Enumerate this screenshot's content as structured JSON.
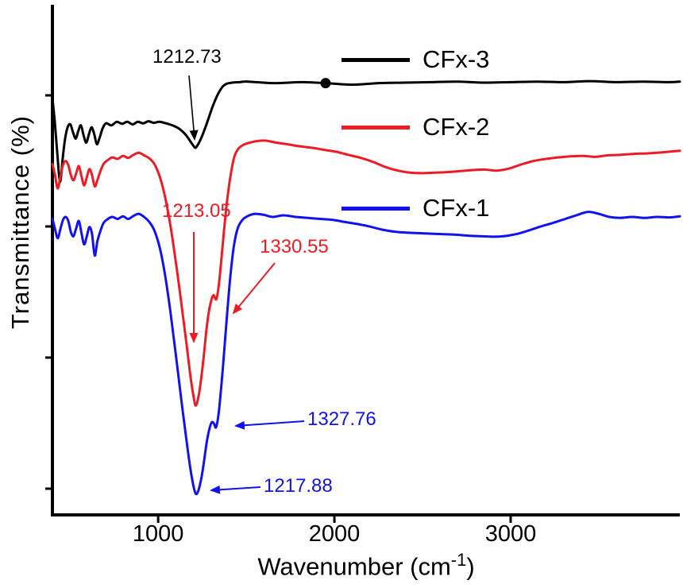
{
  "figure": {
    "background": "#ffffff",
    "ylabel": "Transmittance (%)",
    "xlabel_main": "Wavenumber (cm",
    "xlabel_sup": "-1",
    "xlabel_close": ")",
    "x_ticks": [
      "1000",
      "2000",
      "3000"
    ]
  },
  "legend": [
    {
      "label": "CFx-3",
      "color": "#000000"
    },
    {
      "label": "CFx-2",
      "color": "#ed1c24"
    },
    {
      "label": "CFx-1",
      "color": "#1212ef"
    }
  ],
  "annotations": [
    {
      "text": "1212.73",
      "color": "#000000"
    },
    {
      "text": "1213.05",
      "color": "#ed1c24"
    },
    {
      "text": "1330.55",
      "color": "#ed1c24"
    },
    {
      "text": "1327.76",
      "color": "#1212ef"
    },
    {
      "text": "1217.88",
      "color": "#1212ef"
    }
  ],
  "chart_data": {
    "type": "line",
    "title": "",
    "xlabel": "Wavenumber (cm-1)",
    "ylabel": "Transmittance (%)",
    "xlim": [
      400,
      3960
    ],
    "x_tick_values": [
      1000,
      2000,
      3000
    ],
    "y_ticks_labeled": false,
    "legend_position": "inside-top",
    "annotated_peaks": [
      {
        "series": "CFx-3",
        "wavenumber": 1212.73
      },
      {
        "series": "CFx-2",
        "wavenumber": 1213.05
      },
      {
        "series": "CFx-2",
        "wavenumber": 1330.55
      },
      {
        "series": "CFx-1",
        "wavenumber": 1327.76
      },
      {
        "series": "CFx-1",
        "wavenumber": 1217.88
      }
    ],
    "marker_dot": {
      "series": "CFx-3",
      "x": 1950
    },
    "series": [
      {
        "name": "CFx-3",
        "color": "#000000",
        "x": [
          400,
          413,
          428,
          443,
          458,
          472,
          487,
          502,
          517,
          532,
          547,
          562,
          577,
          592,
          607,
          622,
          637,
          652,
          667,
          685,
          705,
          735,
          765,
          795,
          825,
          855,
          885,
          915,
          945,
          975,
          1005,
          1035,
          1065,
          1095,
          1125,
          1155,
          1180,
          1200,
          1213,
          1230,
          1248,
          1268,
          1288,
          1308,
          1328,
          1348,
          1368,
          1390,
          1420,
          1460,
          1510,
          1660,
          1810,
          1950,
          2100,
          2250,
          2400,
          2550,
          2700,
          2850,
          3000,
          3150,
          3300,
          3450,
          3600,
          3750,
          3900,
          3960
        ],
        "transmittance": [
          82,
          77.5,
          71,
          65.5,
          70,
          74,
          76.3,
          76.8,
          75.2,
          74,
          75.5,
          76.6,
          74.6,
          73.2,
          74.8,
          76.2,
          74.9,
          72.9,
          74.1,
          76,
          77,
          76.6,
          77.3,
          76.9,
          77.3,
          76.8,
          77.3,
          77,
          77.4,
          77.1,
          77.3,
          77.1,
          76.8,
          76.4,
          75.8,
          74.8,
          73.6,
          72.6,
          72.2,
          73.1,
          74.4,
          76.2,
          78.2,
          80.2,
          81.9,
          83.3,
          84.3,
          84.8,
          85,
          85.1,
          85.2,
          84.9,
          85.1,
          84.9,
          84.6,
          84.9,
          85,
          85.1,
          85.2,
          85,
          85.1,
          85.2,
          85.1,
          85.3,
          85.1,
          85.2,
          85.1,
          85.2
        ]
      },
      {
        "name": "CFx-2",
        "color": "#ed1c24",
        "x": [
          400,
          415,
          430,
          445,
          460,
          475,
          490,
          505,
          520,
          535,
          550,
          565,
          580,
          595,
          610,
          625,
          640,
          655,
          672,
          690,
          715,
          740,
          770,
          800,
          830,
          860,
          890,
          920,
          950,
          980,
          1010,
          1040,
          1070,
          1100,
          1130,
          1160,
          1185,
          1203,
          1213,
          1226,
          1242,
          1258,
          1272,
          1286,
          1300,
          1314,
          1330,
          1344,
          1358,
          1374,
          1392,
          1412,
          1432,
          1455,
          1485,
          1520,
          1560,
          1610,
          1670,
          1730,
          1800,
          1870,
          1940,
          2010,
          2080,
          2150,
          2220,
          2290,
          2360,
          2430,
          2500,
          2570,
          2640,
          2710,
          2780,
          2850,
          2920,
          2990,
          3060,
          3130,
          3200,
          3270,
          3340,
          3410,
          3480,
          3550,
          3620,
          3700,
          3780,
          3860,
          3960
        ],
        "transmittance": [
          69,
          66.8,
          64.2,
          66.5,
          68.8,
          69.6,
          68.8,
          66.8,
          65.8,
          67.2,
          68.6,
          66.6,
          64.8,
          66.4,
          68,
          66.8,
          64.6,
          65.8,
          67.6,
          69,
          69.8,
          70.3,
          70,
          70.6,
          70.2,
          70.8,
          71.2,
          70.7,
          70.1,
          68.9,
          66.4,
          62.4,
          56.8,
          49.8,
          42,
          33.8,
          26.8,
          22.8,
          21.5,
          22.8,
          26.2,
          31,
          35.8,
          39.6,
          42,
          43.2,
          42.4,
          45.2,
          50,
          56,
          62,
          67,
          70.4,
          72,
          72.8,
          73.2,
          73.5,
          73.6,
          73.2,
          72.9,
          72.5,
          72.2,
          71.8,
          71.4,
          70.8,
          70.2,
          69.4,
          68.4,
          67.7,
          67.3,
          67.2,
          67.3,
          67.4,
          67.6,
          67.8,
          67.9,
          67.7,
          68.1,
          68.9,
          69.6,
          70,
          70.3,
          70.5,
          70.6,
          70.4,
          70.7,
          70.8,
          71,
          71.1,
          71.3,
          71.6
        ]
      },
      {
        "name": "CFx-1",
        "color": "#1212ef",
        "x": [
          400,
          415,
          430,
          445,
          460,
          475,
          490,
          505,
          520,
          535,
          550,
          565,
          580,
          595,
          610,
          625,
          640,
          655,
          672,
          690,
          715,
          740,
          770,
          800,
          830,
          860,
          890,
          920,
          950,
          980,
          1010,
          1040,
          1070,
          1100,
          1130,
          1160,
          1185,
          1205,
          1218,
          1232,
          1248,
          1262,
          1276,
          1290,
          1304,
          1316,
          1328,
          1342,
          1356,
          1372,
          1390,
          1410,
          1430,
          1452,
          1478,
          1510,
          1550,
          1600,
          1650,
          1710,
          1780,
          1850,
          1920,
          1990,
          2060,
          2130,
          2200,
          2270,
          2340,
          2410,
          2480,
          2550,
          2620,
          2690,
          2760,
          2830,
          2900,
          2960,
          3030,
          3100,
          3170,
          3240,
          3310,
          3380,
          3440,
          3500,
          3560,
          3620,
          3690,
          3760,
          3830,
          3900,
          3960
        ],
        "transmittance": [
          58.2,
          56.2,
          54.4,
          56.2,
          58,
          58.6,
          57.8,
          55.6,
          54.8,
          56.4,
          57.8,
          55.4,
          53.2,
          54.8,
          56.6,
          55.2,
          51,
          53.8,
          55.8,
          57.4,
          58.2,
          58.6,
          58.2,
          58.7,
          58.2,
          58.8,
          59.2,
          58.6,
          57.6,
          55.8,
          52.4,
          47,
          39.8,
          31.6,
          23,
          14.8,
          8.6,
          5,
          4.1,
          5.2,
          7.8,
          11,
          14.4,
          16.8,
          18.2,
          18,
          17.2,
          19.6,
          24.4,
          31,
          39,
          47,
          53,
          56.4,
          58,
          58.8,
          59.2,
          59,
          58.6,
          58.9,
          58.6,
          58.4,
          58.2,
          58,
          57.6,
          57.2,
          56.7,
          56.1,
          55.7,
          55.5,
          55.4,
          55.3,
          55.2,
          55.1,
          54.9,
          54.8,
          54.7,
          54.8,
          55.2,
          55.9,
          56.7,
          57.4,
          58.2,
          59,
          59.6,
          59.2,
          58.6,
          58.4,
          58.6,
          58.4,
          58.6,
          58.5,
          58.7
        ]
      }
    ]
  }
}
